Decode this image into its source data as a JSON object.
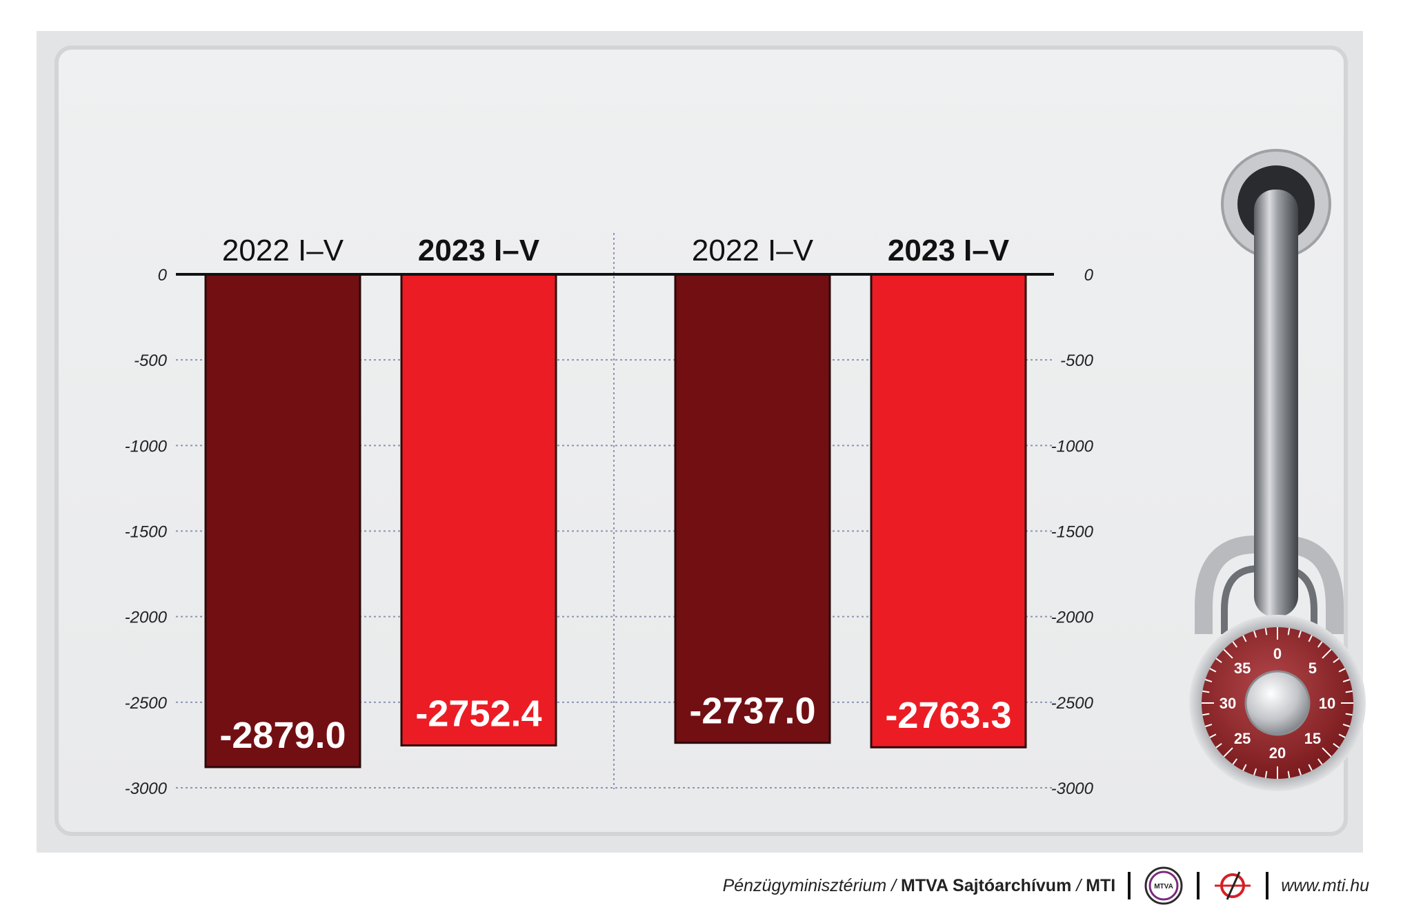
{
  "colors": {
    "dark_bar": "#720F13",
    "bright_bar": "#EC1C24",
    "panel": "#ECEDEE",
    "outer": "#E2E3E5",
    "grid": "#8A93B5",
    "axis": "#111111"
  },
  "chart_data": {
    "type": "bar",
    "ylim": [
      -3000,
      0
    ],
    "yticks_left": [
      "0",
      "-500",
      "-1000",
      "-1500",
      "-2000",
      "-2500",
      "-3000"
    ],
    "yticks_right": [
      "0",
      "-500",
      "-1000",
      "-1500",
      "-2000",
      "-2500",
      "-3000"
    ],
    "tick_values": [
      0,
      -500,
      -1000,
      -1500,
      -2000,
      -2500,
      -3000
    ],
    "grid": true,
    "groups": [
      {
        "bars": [
          {
            "label": "2022  I–V",
            "value": -2879.0,
            "value_label": "-2879.0",
            "style": "dark",
            "bold_label": false
          },
          {
            "label": "2023  I–V",
            "value": -2752.4,
            "value_label": "-2752.4",
            "style": "bright",
            "bold_label": true
          }
        ]
      },
      {
        "bars": [
          {
            "label": "2022  I–V",
            "value": -2737.0,
            "value_label": "-2737.0",
            "style": "dark",
            "bold_label": false
          },
          {
            "label": "2023  I–V",
            "value": -2763.3,
            "value_label": "-2763.3",
            "style": "bright",
            "bold_label": true
          }
        ]
      }
    ]
  },
  "lock": {
    "dial_numbers": [
      "0",
      "5",
      "10",
      "15",
      "20",
      "25",
      "30",
      "35"
    ]
  },
  "footer": {
    "source_prefix": "Pénzügyminisztérium / ",
    "source_bold": "MTVA Sajtóarchívum",
    "source_mid": " / ",
    "source_mti": "MTI",
    "mtva_logo_text": "MTVA",
    "url": "www.mti.hu"
  }
}
